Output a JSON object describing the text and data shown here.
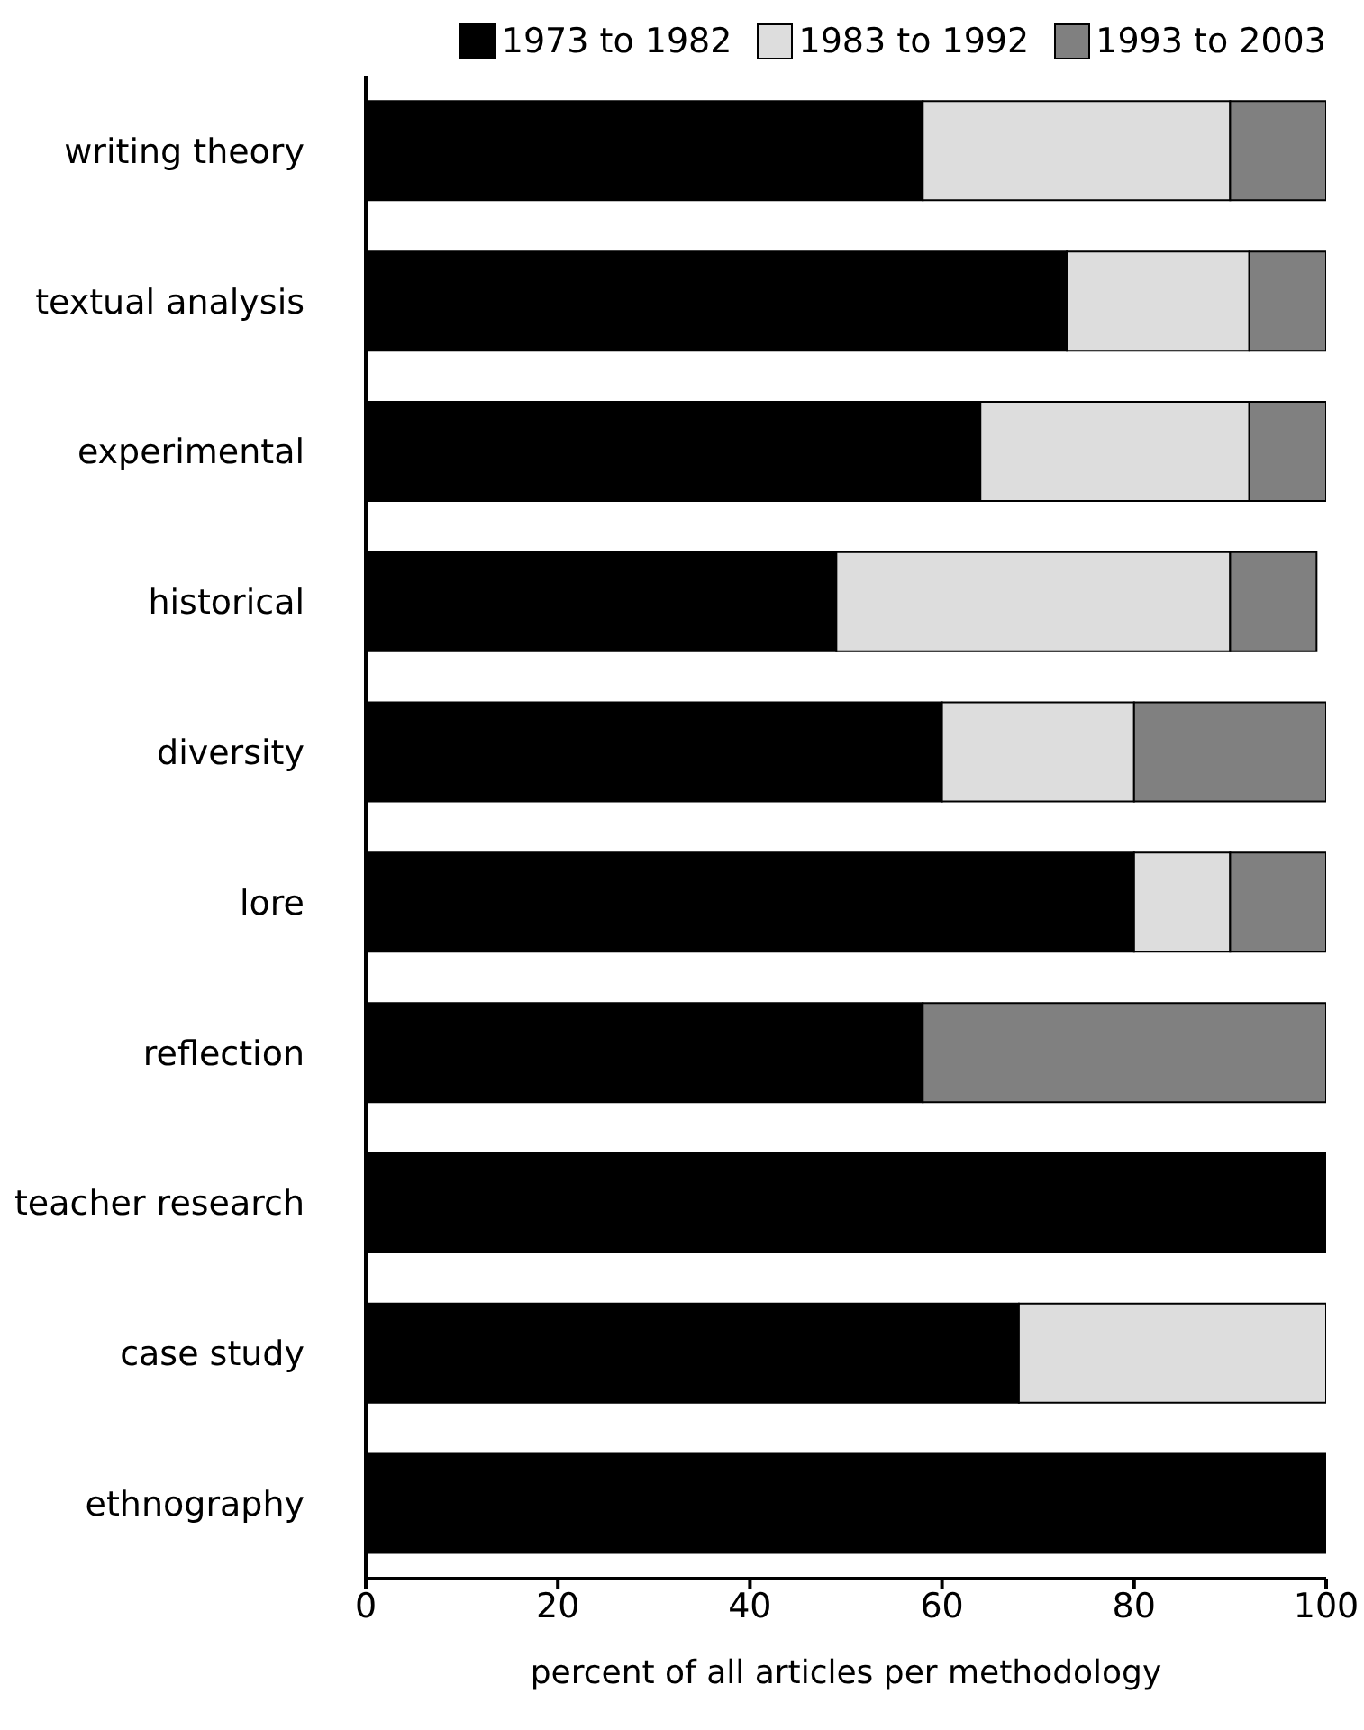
{
  "chart_data": {
    "type": "bar",
    "orientation": "horizontal",
    "stacked": true,
    "xlabel": "percent of all articles per methodology",
    "categories": [
      "writing theory",
      "textual analysis",
      "experimental",
      "historical",
      "diversity",
      "lore",
      "reflection",
      "teacher research",
      "case study",
      "ethnography"
    ],
    "series": [
      {
        "name": "1973 to 1982",
        "color": "#000000",
        "values": [
          58,
          73,
          64,
          49,
          60,
          80,
          58,
          100,
          68,
          100
        ]
      },
      {
        "name": "1983 to 1992",
        "color": "#dddddd",
        "values": [
          32,
          19,
          28,
          41,
          20,
          10,
          0,
          0,
          32,
          0
        ]
      },
      {
        "name": "1993 to 2003",
        "color": "#808080",
        "values": [
          10,
          8,
          8,
          9,
          20,
          10,
          42,
          0,
          0,
          0
        ]
      }
    ],
    "xlim": [
      0,
      100
    ],
    "xticks": [
      0,
      20,
      40,
      60,
      80,
      100
    ],
    "legend": "top right",
    "grid": false
  }
}
